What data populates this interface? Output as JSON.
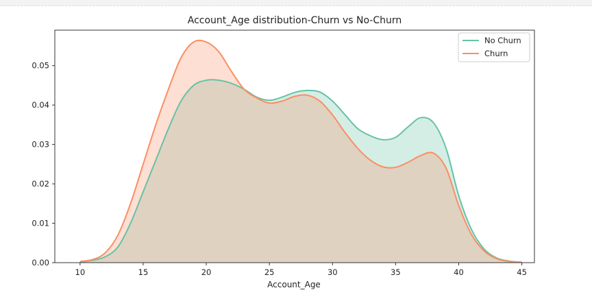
{
  "chart_data": {
    "type": "area",
    "title": "Account_Age distribution-Churn vs No-Churn",
    "xlabel": "Account_Age",
    "ylabel": "",
    "xlim": [
      8,
      46
    ],
    "ylim": [
      0,
      0.059
    ],
    "xticks": [
      10,
      15,
      20,
      25,
      30,
      35,
      40,
      45
    ],
    "yticks": [
      0.0,
      0.01,
      0.02,
      0.03,
      0.04,
      0.05
    ],
    "ytick_labels": [
      "0.00",
      "0.01",
      "0.02",
      "0.03",
      "0.04",
      "0.05"
    ],
    "grid": false,
    "legend": "top-right",
    "x": [
      10,
      11,
      12,
      13,
      14,
      15,
      16,
      17,
      18,
      19,
      20,
      21,
      22,
      23,
      24,
      25,
      26,
      27,
      28,
      29,
      30,
      31,
      32,
      33,
      34,
      35,
      36,
      37,
      38,
      39,
      40,
      41,
      42,
      43,
      44,
      45
    ],
    "series": [
      {
        "name": "No Churn",
        "color": "#66c2a5",
        "values": [
          0.0002,
          0.0006,
          0.0015,
          0.004,
          0.01,
          0.018,
          0.026,
          0.034,
          0.041,
          0.045,
          0.0463,
          0.0463,
          0.0455,
          0.044,
          0.042,
          0.0412,
          0.042,
          0.0432,
          0.0437,
          0.0433,
          0.041,
          0.0375,
          0.034,
          0.0322,
          0.0312,
          0.0318,
          0.0345,
          0.0368,
          0.0355,
          0.029,
          0.017,
          0.0085,
          0.0035,
          0.0012,
          0.0004,
          0.0001
        ]
      },
      {
        "name": "Churn",
        "color": "#fc8d62",
        "values": [
          0.0003,
          0.0008,
          0.0025,
          0.007,
          0.015,
          0.025,
          0.035,
          0.044,
          0.052,
          0.056,
          0.056,
          0.0535,
          0.0485,
          0.044,
          0.0418,
          0.0405,
          0.041,
          0.0422,
          0.0425,
          0.041,
          0.0375,
          0.033,
          0.029,
          0.026,
          0.0243,
          0.0242,
          0.0255,
          0.0272,
          0.0278,
          0.024,
          0.0145,
          0.0072,
          0.003,
          0.001,
          0.0003,
          0.0001
        ]
      }
    ]
  }
}
